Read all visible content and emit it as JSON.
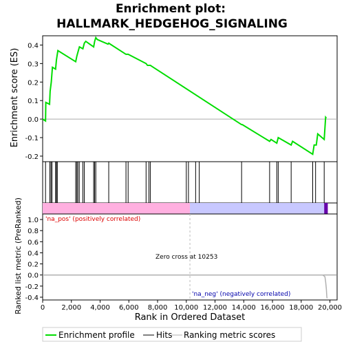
{
  "chart_data": {
    "type": "line",
    "title_line1": "Enrichment plot:",
    "title_line2": "HALLMARK_HEDGEHOG_SIGNALING",
    "ylabel_top": "Enrichment score (ES)",
    "ylabel_bottom": "Ranked list metric (PreRanked)",
    "xlabel": "Rank in Ordered Dataset",
    "xlim": [
      0,
      20500
    ],
    "x_ticks": [
      0,
      2000,
      4000,
      6000,
      8000,
      10000,
      12000,
      14000,
      16000,
      18000,
      20000
    ],
    "x_tick_labels": [
      "0",
      "2,000",
      "4,000",
      "6,000",
      "8,000",
      "10,000",
      "12,000",
      "14,000",
      "16,000",
      "18,000",
      "20,000"
    ],
    "es_ylim": [
      -0.23,
      0.45
    ],
    "es_ticks": [
      -0.2,
      -0.1,
      0.0,
      0.1,
      0.2,
      0.3,
      0.4
    ],
    "es_tick_labels": [
      "-0.2",
      "-0.1",
      "0.0",
      "0.1",
      "0.2",
      "0.3",
      "0.4"
    ],
    "metric_ylim": [
      -0.45,
      1.1
    ],
    "metric_ticks": [
      -0.4,
      -0.2,
      0.0,
      0.2,
      0.4,
      0.6,
      0.8,
      1.0
    ],
    "metric_tick_labels": [
      "-0.4",
      "-0.2",
      "0.0",
      "0.2",
      "0.4",
      "0.6",
      "0.8",
      "1.0"
    ],
    "enrichment_profile": {
      "x": [
        0,
        200,
        220,
        480,
        520,
        600,
        680,
        900,
        960,
        1060,
        2300,
        2380,
        2450,
        2560,
        2800,
        2900,
        3000,
        3550,
        3620,
        3700,
        3800,
        4550,
        4600,
        5800,
        5950,
        7200,
        7300,
        7500,
        7600,
        13850,
        13900,
        15800,
        15900,
        16300,
        16400,
        17300,
        17400,
        18800,
        18900,
        19050,
        19150,
        19600,
        19700,
        19750
      ],
      "y": [
        0.0,
        -0.01,
        0.09,
        0.08,
        0.15,
        0.2,
        0.28,
        0.27,
        0.32,
        0.37,
        0.31,
        0.34,
        0.36,
        0.39,
        0.38,
        0.41,
        0.42,
        0.39,
        0.42,
        0.44,
        0.43,
        0.405,
        0.41,
        0.35,
        0.35,
        0.3,
        0.29,
        0.29,
        0.285,
        -0.03,
        -0.03,
        -0.12,
        -0.11,
        -0.13,
        -0.1,
        -0.14,
        -0.12,
        -0.19,
        -0.14,
        -0.14,
        -0.08,
        -0.11,
        0.01,
        0.005
      ]
    },
    "hits": [
      200,
      500,
      580,
      650,
      900,
      960,
      1020,
      2300,
      2380,
      2450,
      2550,
      2800,
      2900,
      3550,
      3620,
      3700,
      4600,
      5800,
      5950,
      7200,
      7400,
      7500,
      10000,
      10150,
      10650,
      10900,
      13850,
      15800,
      16300,
      16400,
      17300,
      18800,
      19000,
      19600
    ],
    "ranking_metric": {
      "x": [
        0,
        19500,
        19650,
        19700,
        19750,
        19780,
        19800
      ],
      "y": [
        0.0,
        0.0,
        -0.03,
        -0.12,
        -0.25,
        -0.38,
        -0.42
      ]
    },
    "zero_cross_rank": 10253,
    "annotation_zero_cross": "Zero cross at 10253",
    "annotation_pos": "'na_pos' (positively correlated)",
    "annotation_neg": "'na_neg' (negatively correlated)",
    "legend": [
      "Enrichment profile",
      "Hits",
      "Ranking metric scores"
    ],
    "colors": {
      "profile": "#00dd00",
      "hits": "#000000",
      "metric": "#b0b0b0",
      "pos_band": "#ffb0e0",
      "neg_band": "#c8c8ff",
      "neg_end": "#6600aa",
      "pos_text": "#dd0000",
      "neg_text": "#0000aa",
      "zero_line": "#888888"
    }
  }
}
